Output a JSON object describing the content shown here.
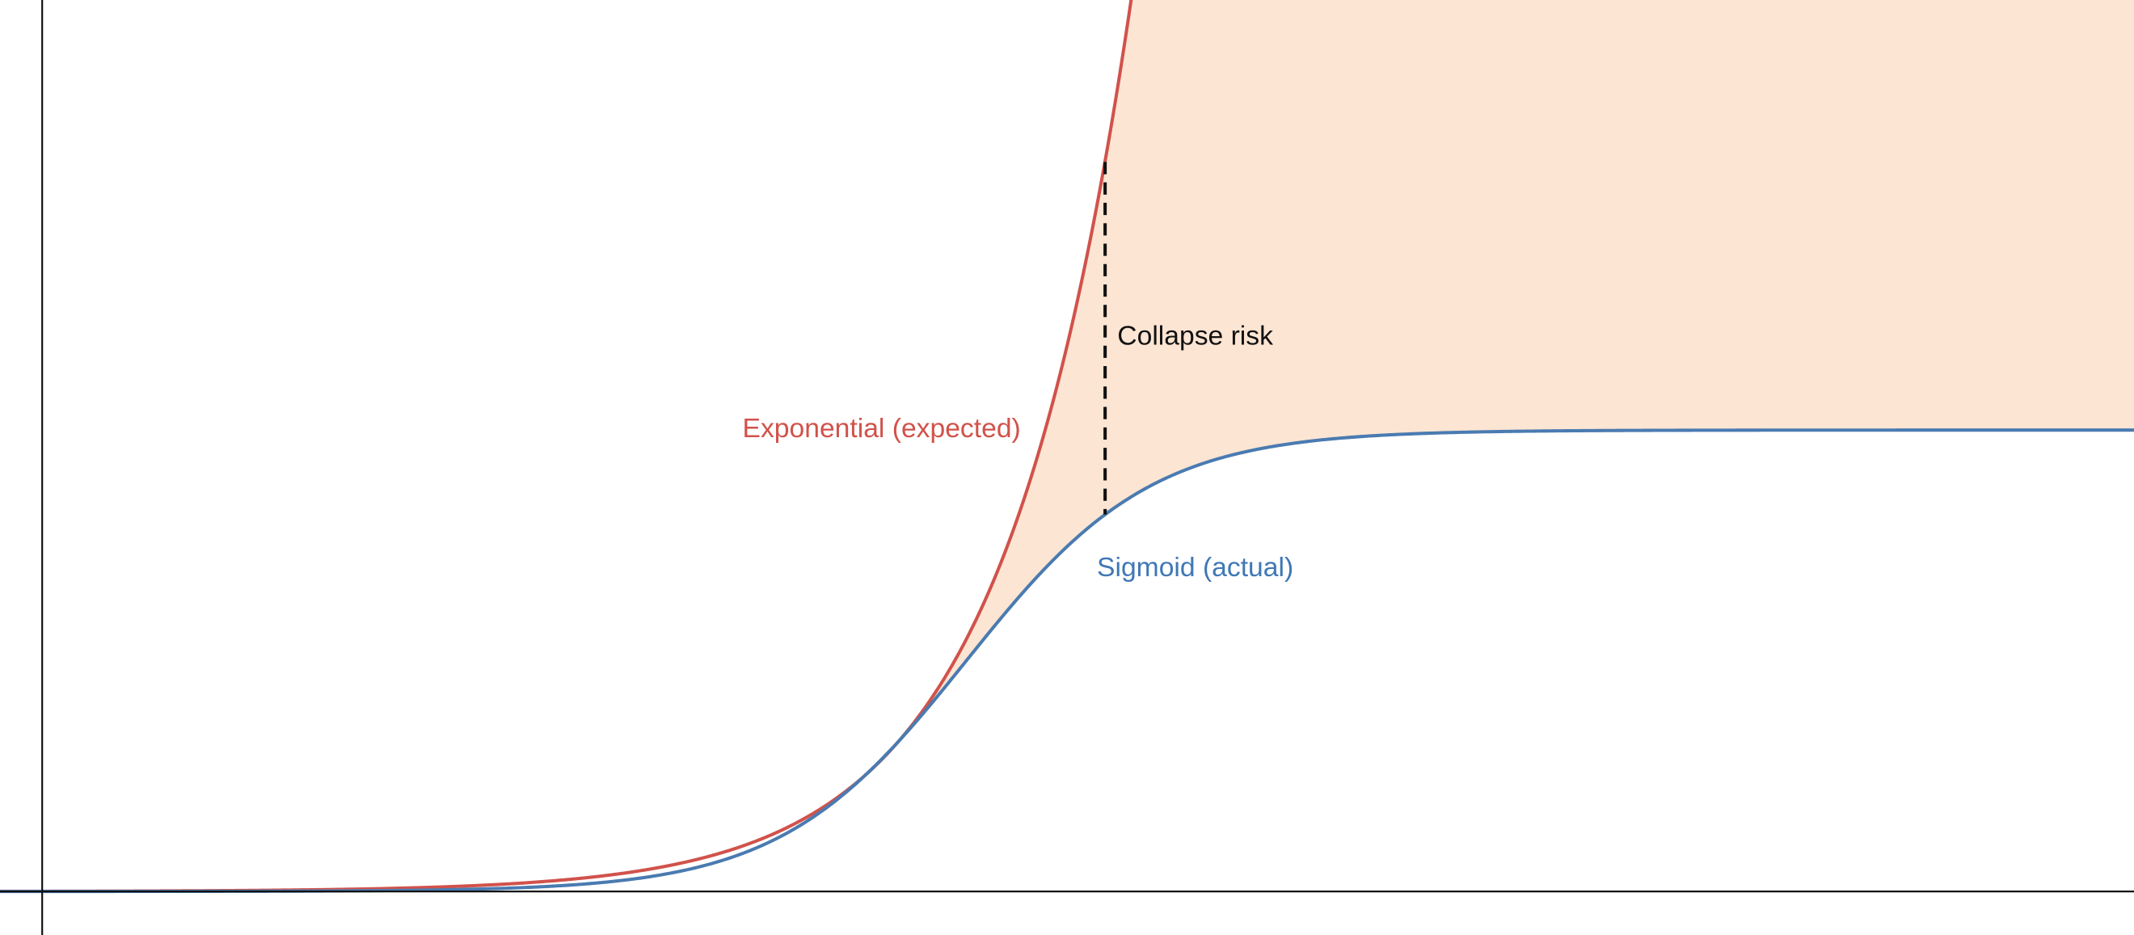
{
  "labels": {
    "exponential": "Exponential (expected)",
    "sigmoid": "Sigmoid (actual)",
    "gap": "Collapse risk"
  }
}
